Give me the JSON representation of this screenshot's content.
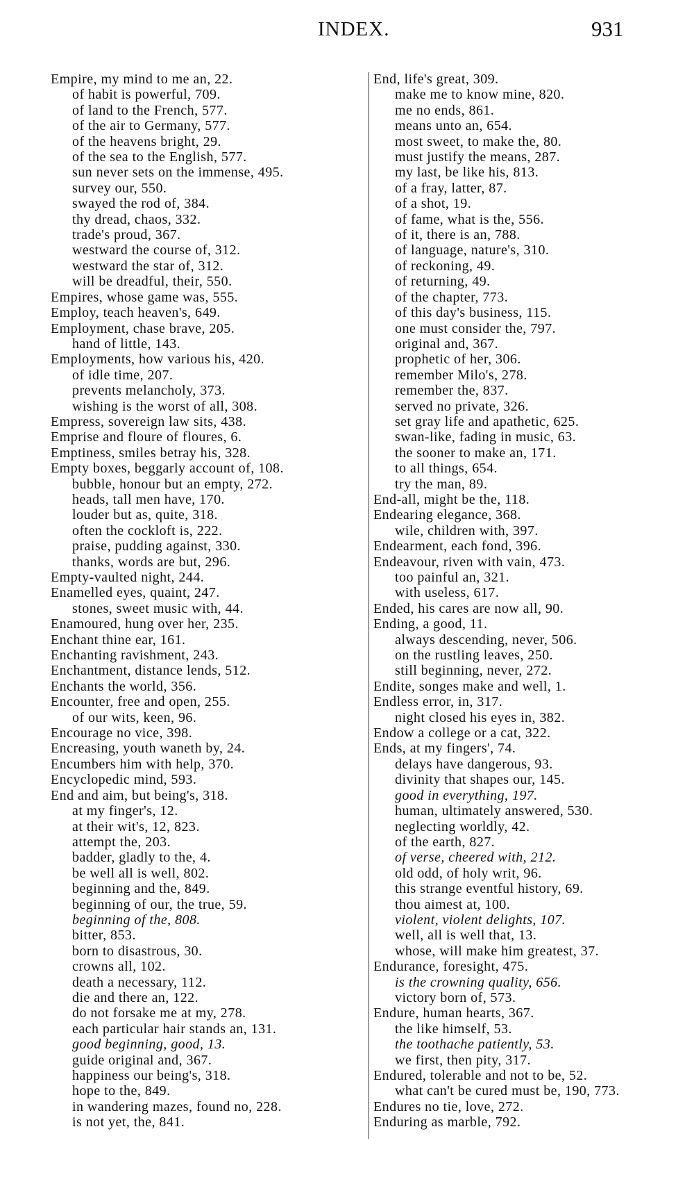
{
  "header": {
    "title": "INDEX.",
    "page_number": "931"
  },
  "left_column": [
    {
      "t": "Empire, my mind to me an, 22."
    },
    {
      "t": "of habit is powerful, 709.",
      "sub": true
    },
    {
      "t": "of land to the French, 577.",
      "sub": true
    },
    {
      "t": "of the air to Germany, 577.",
      "sub": true
    },
    {
      "t": "of the heavens bright, 29.",
      "sub": true
    },
    {
      "t": "of the sea to the English, 577.",
      "sub": true
    },
    {
      "t": "sun never sets on the immense, 495.",
      "sub": true
    },
    {
      "t": "survey our, 550.",
      "sub": true
    },
    {
      "t": "swayed the rod of, 384.",
      "sub": true
    },
    {
      "t": "thy dread, chaos, 332.",
      "sub": true
    },
    {
      "t": "trade's proud, 367.",
      "sub": true
    },
    {
      "t": "westward the course of, 312.",
      "sub": true
    },
    {
      "t": "westward the star of, 312.",
      "sub": true
    },
    {
      "t": "will be dreadful, their, 550.",
      "sub": true
    },
    {
      "t": "Empires, whose game was, 555."
    },
    {
      "t": "Employ, teach heaven's, 649."
    },
    {
      "t": "Employment, chase brave, 205."
    },
    {
      "t": "hand of little, 143.",
      "sub": true
    },
    {
      "t": "Employments, how various his, 420."
    },
    {
      "t": "of idle time, 207.",
      "sub": true
    },
    {
      "t": "prevents melancholy, 373.",
      "sub": true
    },
    {
      "t": "wishing is the worst of all, 308.",
      "sub": true
    },
    {
      "t": "Empress, sovereign law sits, 438."
    },
    {
      "t": "Emprise and floure of floures, 6."
    },
    {
      "t": "Emptiness, smiles betray his, 328."
    },
    {
      "t": "Empty boxes, beggarly account of, 108."
    },
    {
      "t": "bubble, honour but an empty, 272.",
      "sub": true
    },
    {
      "t": "heads, tall men have, 170.",
      "sub": true
    },
    {
      "t": "louder but as, quite, 318.",
      "sub": true
    },
    {
      "t": "often the cockloft is, 222.",
      "sub": true
    },
    {
      "t": "praise, pudding against, 330.",
      "sub": true
    },
    {
      "t": "thanks, words are but, 296.",
      "sub": true
    },
    {
      "t": "Empty-vaulted night, 244."
    },
    {
      "t": "Enamelled eyes, quaint, 247."
    },
    {
      "t": "stones, sweet music with, 44.",
      "sub": true
    },
    {
      "t": "Enamoured, hung over her, 235."
    },
    {
      "t": "Enchant thine ear, 161."
    },
    {
      "t": "Enchanting ravishment, 243."
    },
    {
      "t": "Enchantment, distance lends, 512."
    },
    {
      "t": "Enchants the world, 356."
    },
    {
      "t": "Encounter, free and open, 255."
    },
    {
      "t": "of our wits, keen, 96.",
      "sub": true
    },
    {
      "t": "Encourage no vice, 398."
    },
    {
      "t": "Encreasing, youth waneth by, 24."
    },
    {
      "t": "Encumbers him with help, 370."
    },
    {
      "t": "Encyclopedic mind, 593."
    },
    {
      "t": "End and aim, but being's, 318."
    },
    {
      "t": "at my finger's, 12.",
      "sub": true
    },
    {
      "t": "at their wit's, 12, 823.",
      "sub": true
    },
    {
      "t": "attempt the, 203.",
      "sub": true
    },
    {
      "t": "badder, gladly to the, 4.",
      "sub": true
    },
    {
      "t": "be well all is well, 802.",
      "sub": true
    },
    {
      "t": "beginning and the, 849.",
      "sub": true
    },
    {
      "t": "beginning of our, the true, 59.",
      "sub": true
    },
    {
      "t": "beginning of the, 808.",
      "sub": true,
      "it": true
    },
    {
      "t": "bitter, 853.",
      "sub": true
    },
    {
      "t": "born to disastrous, 30.",
      "sub": true
    },
    {
      "t": "crowns all, 102.",
      "sub": true
    },
    {
      "t": "death a necessary, 112.",
      "sub": true
    },
    {
      "t": "die and there an, 122.",
      "sub": true
    },
    {
      "t": "do not forsake me at my, 278.",
      "sub": true
    },
    {
      "t": "each particular hair stands an, 131.",
      "sub": true
    },
    {
      "t": "good beginning, good, 13.",
      "sub": true,
      "it": true
    },
    {
      "t": "guide original and, 367.",
      "sub": true
    },
    {
      "t": "happiness our being's, 318.",
      "sub": true
    },
    {
      "t": "hope to the, 849.",
      "sub": true
    },
    {
      "t": "in wandering mazes, found no, 228.",
      "sub": true
    },
    {
      "t": "is not yet, the, 841.",
      "sub": true
    }
  ],
  "right_column": [
    {
      "t": "End, life's great, 309."
    },
    {
      "t": "make me to know mine, 820.",
      "sub": true
    },
    {
      "t": "me no ends, 861.",
      "sub": true
    },
    {
      "t": "means unto an, 654.",
      "sub": true
    },
    {
      "t": "most sweet, to make the, 80.",
      "sub": true
    },
    {
      "t": "must justify the means, 287.",
      "sub": true
    },
    {
      "t": "my last, be like his, 813.",
      "sub": true
    },
    {
      "t": "of a fray, latter, 87.",
      "sub": true
    },
    {
      "t": "of a shot, 19.",
      "sub": true
    },
    {
      "t": "of fame, what is the, 556.",
      "sub": true
    },
    {
      "t": "of it, there is an, 788.",
      "sub": true
    },
    {
      "t": "of language, nature's, 310.",
      "sub": true
    },
    {
      "t": "of reckoning, 49.",
      "sub": true
    },
    {
      "t": "of returning, 49.",
      "sub": true
    },
    {
      "t": "of the chapter, 773.",
      "sub": true
    },
    {
      "t": "of this day's business, 115.",
      "sub": true
    },
    {
      "t": "one must consider the, 797.",
      "sub": true
    },
    {
      "t": "original and, 367.",
      "sub": true
    },
    {
      "t": "prophetic of her, 306.",
      "sub": true
    },
    {
      "t": "remember Milo's, 278.",
      "sub": true
    },
    {
      "t": "remember the, 837.",
      "sub": true
    },
    {
      "t": "served no private, 326.",
      "sub": true
    },
    {
      "t": "set gray life and apathetic, 625.",
      "sub": true
    },
    {
      "t": "swan-like, fading in music, 63.",
      "sub": true
    },
    {
      "t": "the sooner to make an, 171.",
      "sub": true
    },
    {
      "t": "to all things, 654.",
      "sub": true
    },
    {
      "t": "try the man, 89.",
      "sub": true
    },
    {
      "t": "End-all, might be the, 118."
    },
    {
      "t": "Endearing elegance, 368."
    },
    {
      "t": "wile, children with, 397.",
      "sub": true
    },
    {
      "t": "Endearment, each fond, 396."
    },
    {
      "t": "Endeavour, riven with vain, 473."
    },
    {
      "t": "too painful an, 321.",
      "sub": true
    },
    {
      "t": "with useless, 617.",
      "sub": true
    },
    {
      "t": "Ended, his cares are now all, 90."
    },
    {
      "t": "Ending, a good, 11."
    },
    {
      "t": "always descending, never, 506.",
      "sub": true
    },
    {
      "t": "on the rustling leaves, 250.",
      "sub": true
    },
    {
      "t": "still beginning, never, 272.",
      "sub": true
    },
    {
      "t": "Endite, songes make and well, 1."
    },
    {
      "t": "Endless error, in, 317."
    },
    {
      "t": "night closed his eyes in, 382.",
      "sub": true
    },
    {
      "t": "Endow a college or a cat, 322."
    },
    {
      "t": "Ends, at my fingers', 74."
    },
    {
      "t": "delays have dangerous, 93.",
      "sub": true
    },
    {
      "t": "divinity that shapes our, 145.",
      "sub": true
    },
    {
      "t": "good in everything, 197.",
      "sub": true,
      "it": true
    },
    {
      "t": "human, ultimately answered, 530.",
      "sub": true
    },
    {
      "t": "neglecting worldly, 42.",
      "sub": true
    },
    {
      "t": "of the earth, 827.",
      "sub": true
    },
    {
      "t": "of verse, cheered with, 212.",
      "sub": true,
      "it": true
    },
    {
      "t": "old odd, of holy writ, 96.",
      "sub": true
    },
    {
      "t": "this strange eventful history, 69.",
      "sub": true
    },
    {
      "t": "thou aimest at, 100.",
      "sub": true
    },
    {
      "t": "violent, violent delights, 107.",
      "sub": true,
      "it": true
    },
    {
      "t": "well, all is well that, 13.",
      "sub": true
    },
    {
      "t": "whose, will make him greatest, 37.",
      "sub": true
    },
    {
      "t": "Endurance, foresight, 475."
    },
    {
      "t": "is the crowning quality, 656.",
      "sub": true,
      "it": true
    },
    {
      "t": "victory born of, 573.",
      "sub": true
    },
    {
      "t": "Endure, human hearts, 367."
    },
    {
      "t": "the like himself, 53.",
      "sub": true
    },
    {
      "t": "the toothache patiently, 53.",
      "sub": true,
      "it": true
    },
    {
      "t": "we first, then pity, 317.",
      "sub": true
    },
    {
      "t": "Endured, tolerable and not to be, 52."
    },
    {
      "t": "what can't be cured must be, 190, 773.",
      "sub": true
    },
    {
      "t": "Endures no tie, love, 272."
    },
    {
      "t": "Enduring as marble, 792."
    }
  ]
}
